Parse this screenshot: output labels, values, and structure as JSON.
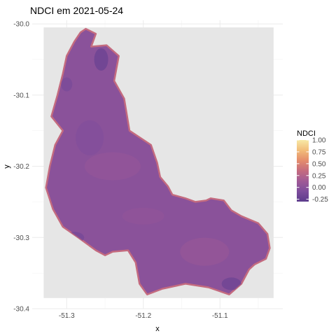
{
  "chart_data": {
    "type": "heatmap",
    "title": "NDCI em 2021-05-24",
    "xlabel": "x",
    "ylabel": "y",
    "xlim": [
      -51.345,
      -51.018
    ],
    "ylim": [
      -30.4,
      -29.995
    ],
    "x_ticks": [
      "-51.3",
      "-51.2",
      "-51.1"
    ],
    "x_tick_values": [
      -51.3,
      -51.2,
      -51.1
    ],
    "y_ticks": [
      "-30.0",
      "-30.1",
      "-30.2",
      "-30.3",
      "-30.4"
    ],
    "y_tick_values": [
      -30.0,
      -30.1,
      -30.2,
      -30.3,
      -30.4
    ],
    "grid": true,
    "panel_background": "#e6e6e6",
    "raster_extent": {
      "x": [
        -51.33,
        -51.03
      ],
      "y": [
        -30.385,
        -30.005
      ]
    },
    "lake_outline_lonlat": [
      [
        -51.275,
        -30.007
      ],
      [
        -51.262,
        -30.014
      ],
      [
        -51.268,
        -30.032
      ],
      [
        -51.248,
        -30.03
      ],
      [
        -51.232,
        -30.045
      ],
      [
        -51.238,
        -30.08
      ],
      [
        -51.225,
        -30.105
      ],
      [
        -51.218,
        -30.15
      ],
      [
        -51.19,
        -30.17
      ],
      [
        -51.182,
        -30.195
      ],
      [
        -51.178,
        -30.215
      ],
      [
        -51.168,
        -30.228
      ],
      [
        -51.162,
        -30.24
      ],
      [
        -51.145,
        -30.245
      ],
      [
        -51.132,
        -30.25
      ],
      [
        -51.118,
        -30.248
      ],
      [
        -51.112,
        -30.245
      ],
      [
        -51.095,
        -30.248
      ],
      [
        -51.085,
        -30.262
      ],
      [
        -51.072,
        -30.27
      ],
      [
        -51.05,
        -30.28
      ],
      [
        -51.038,
        -30.295
      ],
      [
        -51.035,
        -30.315
      ],
      [
        -51.04,
        -30.33
      ],
      [
        -51.055,
        -30.338
      ],
      [
        -51.062,
        -30.345
      ],
      [
        -51.072,
        -30.365
      ],
      [
        -51.088,
        -30.38
      ],
      [
        -51.115,
        -30.37
      ],
      [
        -51.145,
        -30.365
      ],
      [
        -51.175,
        -30.372
      ],
      [
        -51.195,
        -30.38
      ],
      [
        -51.205,
        -30.365
      ],
      [
        -51.21,
        -30.335
      ],
      [
        -51.22,
        -30.318
      ],
      [
        -51.24,
        -30.32
      ],
      [
        -51.25,
        -30.325
      ],
      [
        -51.262,
        -30.318
      ],
      [
        -51.285,
        -30.3
      ],
      [
        -51.305,
        -30.285
      ],
      [
        -51.318,
        -30.26
      ],
      [
        -51.327,
        -30.23
      ],
      [
        -51.322,
        -30.2
      ],
      [
        -51.315,
        -30.17
      ],
      [
        -51.305,
        -30.15
      ],
      [
        -51.32,
        -30.13
      ],
      [
        -51.312,
        -30.1
      ],
      [
        -51.305,
        -30.07
      ],
      [
        -51.3,
        -30.045
      ],
      [
        -51.29,
        -30.025
      ],
      [
        -51.282,
        -30.012
      ]
    ],
    "value_range": [
      -0.3,
      1.0
    ],
    "dominant_value": 0.0,
    "legend": {
      "title": "NDCI",
      "ticks": [
        "1.00",
        "0.75",
        "0.50",
        "0.25",
        "0.00",
        "-0.25"
      ],
      "tick_values": [
        1.0,
        0.75,
        0.5,
        0.25,
        0.0,
        -0.25
      ],
      "placement": "right",
      "colors": [
        "#5c3b8c",
        "#7d4d9c",
        "#a05a96",
        "#c46b7f",
        "#e48c6c",
        "#f2bc79",
        "#f7e9a6"
      ]
    }
  }
}
